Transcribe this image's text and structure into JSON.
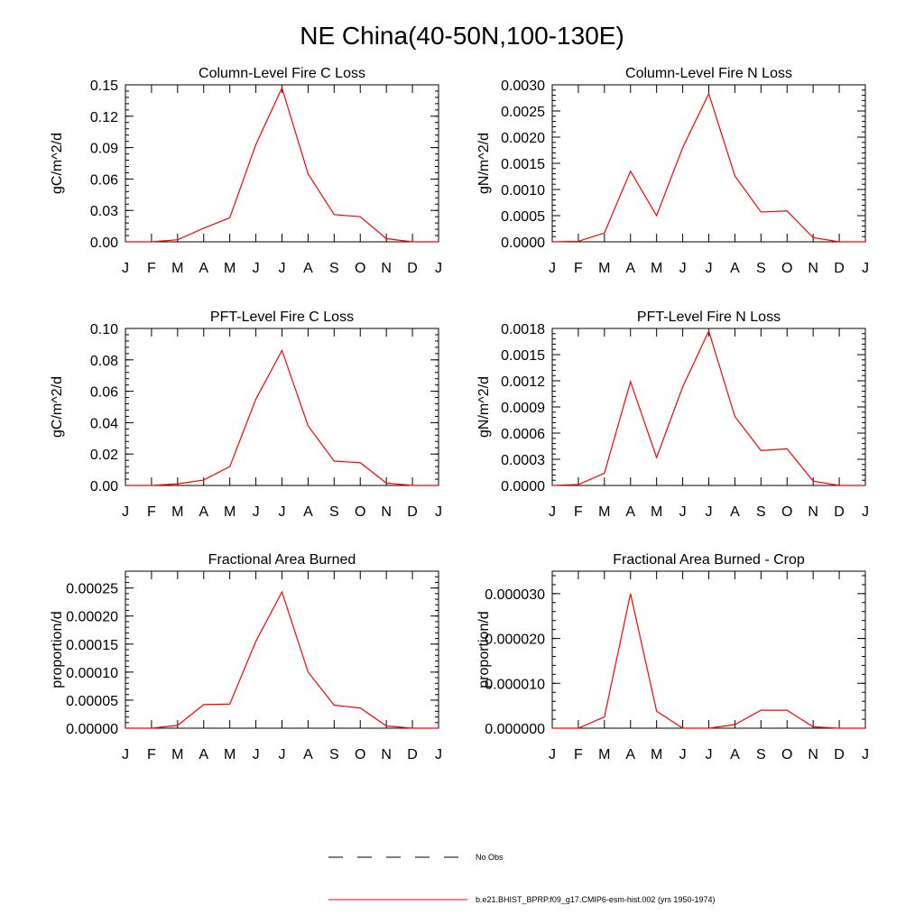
{
  "figure": {
    "title": "NE China(40-50N,100-130E)",
    "legend": [
      {
        "label": "No Obs",
        "color": "#000000",
        "dash": true
      },
      {
        "label": "b.e21.BHIST_BPRP.f09_g17.CMIP6-esm-hist.002 (yrs 1950-1974)",
        "color": "#ff0000",
        "dash": false
      }
    ]
  },
  "chart_data": [
    {
      "type": "line",
      "title": "Column-Level Fire C Loss",
      "ylabel": "gC/m^2/d",
      "categories": [
        "J",
        "F",
        "M",
        "A",
        "M",
        "J",
        "J",
        "A",
        "S",
        "O",
        "N",
        "D",
        "J"
      ],
      "ylim": [
        0,
        0.15
      ],
      "yticks": [
        "0.00",
        "0.03",
        "0.06",
        "0.09",
        "0.12",
        "0.15"
      ],
      "series": [
        {
          "color": "#ff0000",
          "values": [
            0,
            0,
            0.002,
            0.013,
            0.023,
            0.093,
            0.147,
            0.065,
            0.026,
            0.024,
            0.003,
            0,
            0
          ]
        }
      ]
    },
    {
      "type": "line",
      "title": "Column-Level Fire N Loss",
      "ylabel": "gN/m^2/d",
      "categories": [
        "J",
        "F",
        "M",
        "A",
        "M",
        "J",
        "J",
        "A",
        "S",
        "O",
        "N",
        "D",
        "J"
      ],
      "ylim": [
        0,
        0.003
      ],
      "yticks": [
        "0.0000",
        "0.0005",
        "0.0010",
        "0.0015",
        "0.0020",
        "0.0025",
        "0.0030"
      ],
      "series": [
        {
          "color": "#ff0000",
          "values": [
            0,
            1e-05,
            0.00017,
            0.00135,
            0.0005,
            0.0018,
            0.00283,
            0.00126,
            0.00057,
            0.00059,
            8e-05,
            0,
            0
          ]
        }
      ]
    },
    {
      "type": "line",
      "title": "PFT-Level Fire C Loss",
      "ylabel": "gC/m^2/d",
      "categories": [
        "J",
        "F",
        "M",
        "A",
        "M",
        "J",
        "J",
        "A",
        "S",
        "O",
        "N",
        "D",
        "J"
      ],
      "ylim": [
        0,
        0.1
      ],
      "yticks": [
        "0.00",
        "0.02",
        "0.04",
        "0.06",
        "0.08",
        "0.10"
      ],
      "series": [
        {
          "color": "#ff0000",
          "values": [
            0,
            0,
            0.001,
            0.0035,
            0.012,
            0.055,
            0.086,
            0.038,
            0.0155,
            0.0145,
            0.0015,
            0,
            0
          ]
        }
      ]
    },
    {
      "type": "line",
      "title": "PFT-Level Fire N Loss",
      "ylabel": "gN/m^2/d",
      "categories": [
        "J",
        "F",
        "M",
        "A",
        "M",
        "J",
        "J",
        "A",
        "S",
        "O",
        "N",
        "D",
        "J"
      ],
      "ylim": [
        0,
        0.0018
      ],
      "yticks": [
        "0.0000",
        "0.0003",
        "0.0006",
        "0.0009",
        "0.0012",
        "0.0015",
        "0.0018"
      ],
      "series": [
        {
          "color": "#ff0000",
          "values": [
            0,
            1e-05,
            0.00014,
            0.00119,
            0.00032,
            0.00113,
            0.00177,
            0.00079,
            0.0004,
            0.00042,
            5e-05,
            0,
            0
          ]
        }
      ]
    },
    {
      "type": "line",
      "title": "Fractional Area Burned",
      "ylabel": "proportion/d",
      "categories": [
        "J",
        "F",
        "M",
        "A",
        "M",
        "J",
        "J",
        "A",
        "S",
        "O",
        "N",
        "D",
        "J"
      ],
      "ylim": [
        0,
        0.00028
      ],
      "yticks": [
        "0.00000",
        "0.00005",
        "0.00010",
        "0.00015",
        "0.00020",
        "0.00025"
      ],
      "series": [
        {
          "color": "#ff0000",
          "values": [
            0,
            0,
            5e-06,
            4.2e-05,
            4.3e-05,
            0.000155,
            0.000243,
            0.0001,
            4.1e-05,
            3.6e-05,
            4e-06,
            0,
            0
          ]
        }
      ]
    },
    {
      "type": "line",
      "title": "Fractional Area Burned - Crop",
      "ylabel": "proportion/d",
      "categories": [
        "J",
        "F",
        "M",
        "A",
        "M",
        "J",
        "J",
        "A",
        "S",
        "O",
        "N",
        "D",
        "J"
      ],
      "ylim": [
        0,
        3.5e-05
      ],
      "yticks": [
        "0.000000",
        "0.000010",
        "0.000020",
        "0.000030"
      ],
      "series": [
        {
          "color": "#ff0000",
          "values": [
            0,
            0,
            2.5e-06,
            3e-05,
            3.8e-06,
            0,
            0,
            8e-07,
            4e-06,
            4e-06,
            3e-07,
            0,
            0
          ]
        }
      ]
    }
  ]
}
